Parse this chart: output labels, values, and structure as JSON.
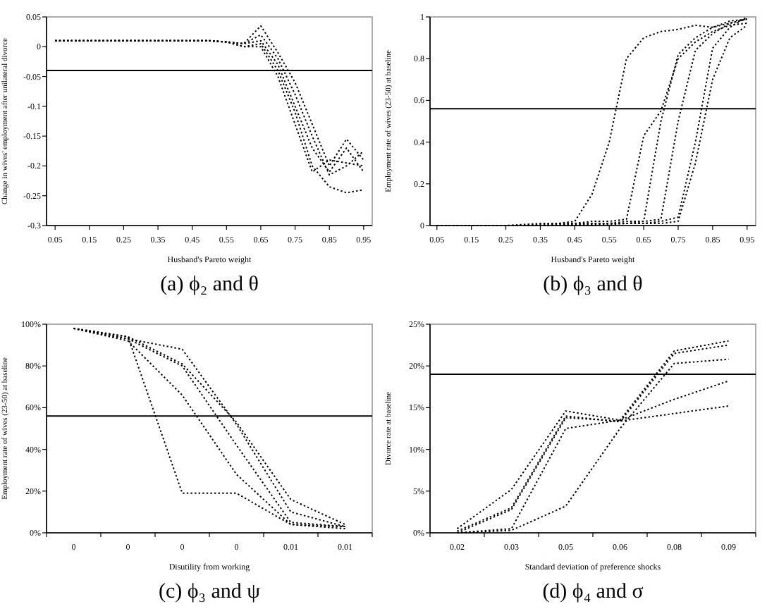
{
  "chart_data": [
    {
      "type": "line",
      "title": "(a) ϕ₂ and θ",
      "xlabel": "Husband's Pareto weight",
      "ylabel": "Change in wives' employment after unilateral divorce",
      "x": [
        0.05,
        0.1,
        0.15,
        0.2,
        0.25,
        0.3,
        0.35,
        0.4,
        0.45,
        0.5,
        0.55,
        0.6,
        0.65,
        0.7,
        0.75,
        0.8,
        0.85,
        0.9,
        0.95
      ],
      "series": [
        {
          "color": "#000000",
          "values": [
            0.01,
            0.01,
            0.01,
            0.01,
            0.01,
            0.01,
            0.01,
            0.01,
            0.01,
            0.01,
            0.008,
            0.005,
            0.035,
            -0.01,
            -0.06,
            -0.13,
            -0.2,
            -0.155,
            -0.19
          ]
        },
        {
          "color": "#000000",
          "values": [
            0.01,
            0.01,
            0.01,
            0.01,
            0.01,
            0.01,
            0.01,
            0.01,
            0.01,
            0.01,
            0.008,
            0.005,
            0.02,
            -0.02,
            -0.08,
            -0.15,
            -0.215,
            -0.2,
            -0.175
          ]
        },
        {
          "color": "#000000",
          "values": [
            0.01,
            0.01,
            0.01,
            0.01,
            0.01,
            0.01,
            0.01,
            0.01,
            0.01,
            0.01,
            0.008,
            0.005,
            0.01,
            -0.03,
            -0.1,
            -0.17,
            -0.21,
            -0.17,
            -0.21
          ]
        },
        {
          "color": "#000000",
          "values": [
            0.01,
            0.01,
            0.01,
            0.01,
            0.01,
            0.01,
            0.01,
            0.01,
            0.01,
            0.01,
            0.008,
            0,
            0.005,
            -0.04,
            -0.11,
            -0.2,
            -0.235,
            -0.245,
            -0.24
          ]
        },
        {
          "color": "#000000",
          "values": [
            0.01,
            0.01,
            0.01,
            0.01,
            0.01,
            0.01,
            0.01,
            0.01,
            0.01,
            0.01,
            0.008,
            0,
            0,
            -0.05,
            -0.13,
            -0.21,
            -0.19,
            -0.195,
            -0.2
          ]
        }
      ],
      "xlim": [
        0.025,
        0.975
      ],
      "xticks": [
        0.05,
        0.15,
        0.25,
        0.35,
        0.45,
        0.55,
        0.65,
        0.75,
        0.85,
        0.95
      ],
      "ylim": [
        -0.3,
        0.05
      ],
      "yticks": [
        -0.3,
        -0.25,
        -0.2,
        -0.15,
        -0.1,
        -0.05,
        0,
        0.05
      ],
      "ref_lines": [
        {
          "axis": "y",
          "value": -0.04,
          "color": "#000000"
        }
      ],
      "marker": "none",
      "line_style": "dotted",
      "grid": false
    },
    {
      "type": "line",
      "title": "(b) ϕ₃ and θ",
      "xlabel": "Husband's Pareto weight",
      "ylabel": "Employment rate of wives (23-50) at baseline",
      "x": [
        0.05,
        0.1,
        0.15,
        0.2,
        0.25,
        0.3,
        0.35,
        0.4,
        0.45,
        0.5,
        0.55,
        0.6,
        0.65,
        0.7,
        0.75,
        0.8,
        0.85,
        0.9,
        0.95
      ],
      "series": [
        {
          "color": "#000000",
          "values": [
            0,
            0,
            0,
            0,
            0,
            0.005,
            0.01,
            0.01,
            0.02,
            0.15,
            0.4,
            0.8,
            0.9,
            0.93,
            0.94,
            0.96,
            0.95,
            0.97,
            0.99
          ]
        },
        {
          "color": "#000000",
          "values": [
            0,
            0,
            0,
            0,
            0,
            0,
            0.005,
            0.01,
            0.01,
            0.02,
            0.02,
            0.03,
            0.43,
            0.55,
            0.8,
            0.88,
            0.93,
            0.96,
            0.97
          ]
        },
        {
          "color": "#000000",
          "values": [
            0,
            0,
            0,
            0,
            0,
            0,
            0,
            0.005,
            0.01,
            0.01,
            0.01,
            0.02,
            0.02,
            0.5,
            0.82,
            0.9,
            0.95,
            0.98,
            0.99
          ]
        },
        {
          "color": "#000000",
          "values": [
            0,
            0,
            0,
            0,
            0,
            0,
            0,
            0,
            0.005,
            0.01,
            0.01,
            0.01,
            0.02,
            0.03,
            0.5,
            0.84,
            0.92,
            0.97,
            0.99
          ]
        },
        {
          "color": "#000000",
          "values": [
            0,
            0,
            0,
            0,
            0,
            0,
            0,
            0,
            0,
            0.005,
            0.01,
            0.01,
            0.01,
            0.02,
            0.04,
            0.4,
            0.85,
            0.95,
            1
          ]
        },
        {
          "color": "#000000",
          "values": [
            0,
            0,
            0,
            0,
            0,
            0,
            0,
            0,
            0,
            0,
            0.005,
            0.01,
            0.01,
            0.01,
            0.02,
            0.3,
            0.7,
            0.9,
            0.96
          ]
        }
      ],
      "xlim": [
        0.03,
        0.975
      ],
      "xticks": [
        0.05,
        0.15,
        0.25,
        0.35,
        0.45,
        0.55,
        0.65,
        0.75,
        0.85,
        0.95
      ],
      "ylim": [
        0,
        1
      ],
      "yticks": [
        0,
        0.2,
        0.4,
        0.6,
        0.8,
        1
      ],
      "ref_lines": [
        {
          "axis": "y",
          "value": 0.56,
          "color": "#000000"
        }
      ],
      "marker": "none",
      "line_style": "dotted",
      "grid": false
    },
    {
      "type": "line",
      "title": "(c) ϕ₃ and ψ",
      "xlabel": "Disutility from working",
      "ylabel": "Employment rate of wives (23-50) at baseline",
      "categories": [
        "0",
        "0",
        "0",
        "0",
        "0.01",
        "0.01"
      ],
      "series": [
        {
          "color": "#000000",
          "values": [
            98,
            94,
            19,
            19,
            4,
            3
          ]
        },
        {
          "color": "#000000",
          "values": [
            98,
            92,
            66,
            28,
            4,
            2
          ]
        },
        {
          "color": "#000000",
          "values": [
            98,
            93,
            80,
            42,
            5,
            3
          ]
        },
        {
          "color": "#000000",
          "values": [
            98,
            94,
            81,
            53,
            16,
            4
          ]
        },
        {
          "color": "#000000",
          "values": [
            98,
            93,
            88,
            52,
            10,
            3
          ]
        }
      ],
      "ylim": [
        0,
        100
      ],
      "yticks": [
        {
          "value": 0,
          "label": "0%"
        },
        {
          "value": 20,
          "label": "20%"
        },
        {
          "value": 40,
          "label": "40%"
        },
        {
          "value": 60,
          "label": "60%"
        },
        {
          "value": 80,
          "label": "80%"
        },
        {
          "value": 100,
          "label": "100%"
        }
      ],
      "ref_lines": [
        {
          "axis": "y",
          "value": 56,
          "color": "#000000"
        }
      ],
      "marker": "none",
      "line_style": "dotted",
      "grid": false
    },
    {
      "type": "line",
      "title": "(d) ϕ₄ and σ",
      "xlabel": "Standard deviation of preference shocks",
      "ylabel": "Divorce rate at baseline",
      "categories": [
        "0.02",
        "0.03",
        "0.05",
        "0.06",
        "0.08",
        "0.09"
      ],
      "series": [
        {
          "color": "#000000",
          "values": [
            0.5,
            5.2,
            14.6,
            13.5,
            21.8,
            23
          ]
        },
        {
          "color": "#000000",
          "values": [
            0.2,
            3,
            14,
            13.3,
            21.5,
            22.5
          ]
        },
        {
          "color": "#000000",
          "values": [
            0,
            2.8,
            13.8,
            13.4,
            14.3,
            15.2
          ]
        },
        {
          "color": "#000000",
          "values": [
            0,
            0.5,
            12.5,
            13.5,
            16,
            18.2
          ]
        },
        {
          "color": "#000000",
          "values": [
            0,
            0.3,
            3.2,
            12.5,
            20.3,
            20.8
          ]
        }
      ],
      "ylim": [
        0,
        25
      ],
      "yticks": [
        {
          "value": 0,
          "label": "0%"
        },
        {
          "value": 5,
          "label": "5%"
        },
        {
          "value": 10,
          "label": "10%"
        },
        {
          "value": 15,
          "label": "15%"
        },
        {
          "value": 20,
          "label": "20%"
        },
        {
          "value": 25,
          "label": "25%"
        }
      ],
      "ref_lines": [
        {
          "axis": "y",
          "value": 19,
          "color": "#000000"
        }
      ],
      "marker": "none",
      "line_style": "dotted",
      "grid": false
    }
  ]
}
